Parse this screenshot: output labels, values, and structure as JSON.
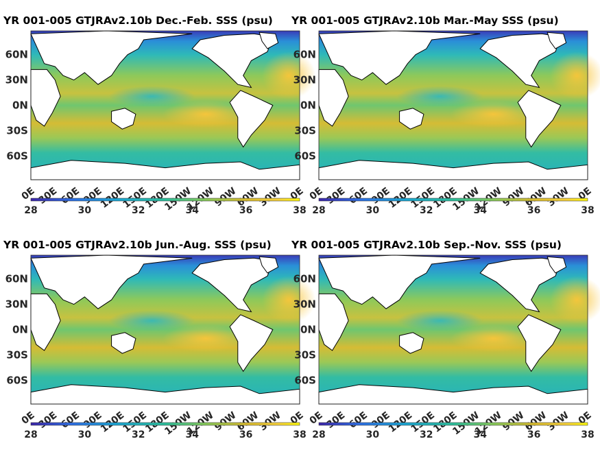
{
  "panels": [
    {
      "title": "YR 001-005 GTJRAv2.10b Dec.-Feb. SSS (psu)"
    },
    {
      "title": "YR 001-005 GTJRAv2.10b Mar.-May SSS (psu)"
    },
    {
      "title": "YR 001-005 GTJRAv2.10b Jun.-Aug. SSS (psu)"
    },
    {
      "title": "YR 001-005 GTJRAv2.10b Sep.-Nov. SSS (psu)"
    }
  ],
  "lat_ticks": [
    "60N",
    "30N",
    "0N",
    "30S",
    "60S"
  ],
  "lon_ticks": [
    "0E",
    "30E",
    "60E",
    "90E",
    "120E",
    "150E",
    "180E",
    "150W",
    "120W",
    "90W",
    "60W",
    "30W",
    "0E"
  ],
  "colorbar_ticks": [
    "28",
    "30",
    "32",
    "34",
    "36",
    "38"
  ],
  "colors": {
    "colormap": [
      "#3d26a8",
      "#2f6fe5",
      "#1ca6d3",
      "#2ebf9c",
      "#87c95a",
      "#d8bb30",
      "#f7d13c",
      "#fbf80d"
    ],
    "land": "#ffffff",
    "coast": "#000000"
  }
}
